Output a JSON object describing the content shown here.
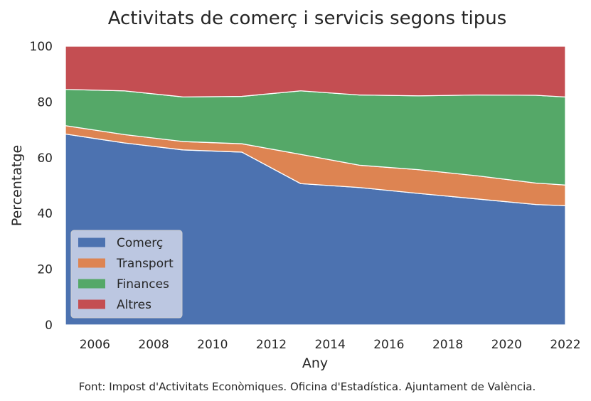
{
  "chart_data": {
    "type": "area",
    "stacked": true,
    "title": "Activitats de comerç i servicis segons tipus",
    "xlabel": "Any",
    "ylabel": "Percentatge",
    "xlim": [
      2005,
      2022
    ],
    "ylim": [
      0,
      100
    ],
    "x_ticks": [
      2006,
      2008,
      2010,
      2012,
      2014,
      2016,
      2018,
      2020,
      2022
    ],
    "y_ticks": [
      0,
      20,
      40,
      60,
      80,
      100
    ],
    "grid": false,
    "legend_position": "bottom-left",
    "x": [
      2005,
      2007,
      2009,
      2011,
      2013,
      2015,
      2017,
      2019,
      2021,
      2022
    ],
    "series": [
      {
        "name": "Comerç",
        "color": "#4c72b0",
        "values": [
          68.5,
          65.3,
          62.8,
          62.0,
          50.7,
          49.3,
          47.2,
          45.2,
          43.2,
          42.8
        ]
      },
      {
        "name": "Transport",
        "color": "#dd8452",
        "values": [
          3.0,
          3.0,
          3.0,
          3.0,
          10.5,
          8.0,
          8.5,
          8.3,
          7.7,
          7.4
        ]
      },
      {
        "name": "Finances",
        "color": "#55a868",
        "values": [
          13.0,
          15.7,
          16.0,
          17.0,
          22.8,
          25.2,
          26.5,
          29.0,
          31.5,
          31.6
        ]
      },
      {
        "name": "Altres",
        "color": "#c44e52",
        "values": [
          15.5,
          16.0,
          18.2,
          18.0,
          16.0,
          17.5,
          17.8,
          17.5,
          17.6,
          18.2
        ]
      }
    ],
    "source_note": "Font: Impost d'Activitats Econòmiques. Oficina d'Estadística. Ajuntament de València."
  }
}
